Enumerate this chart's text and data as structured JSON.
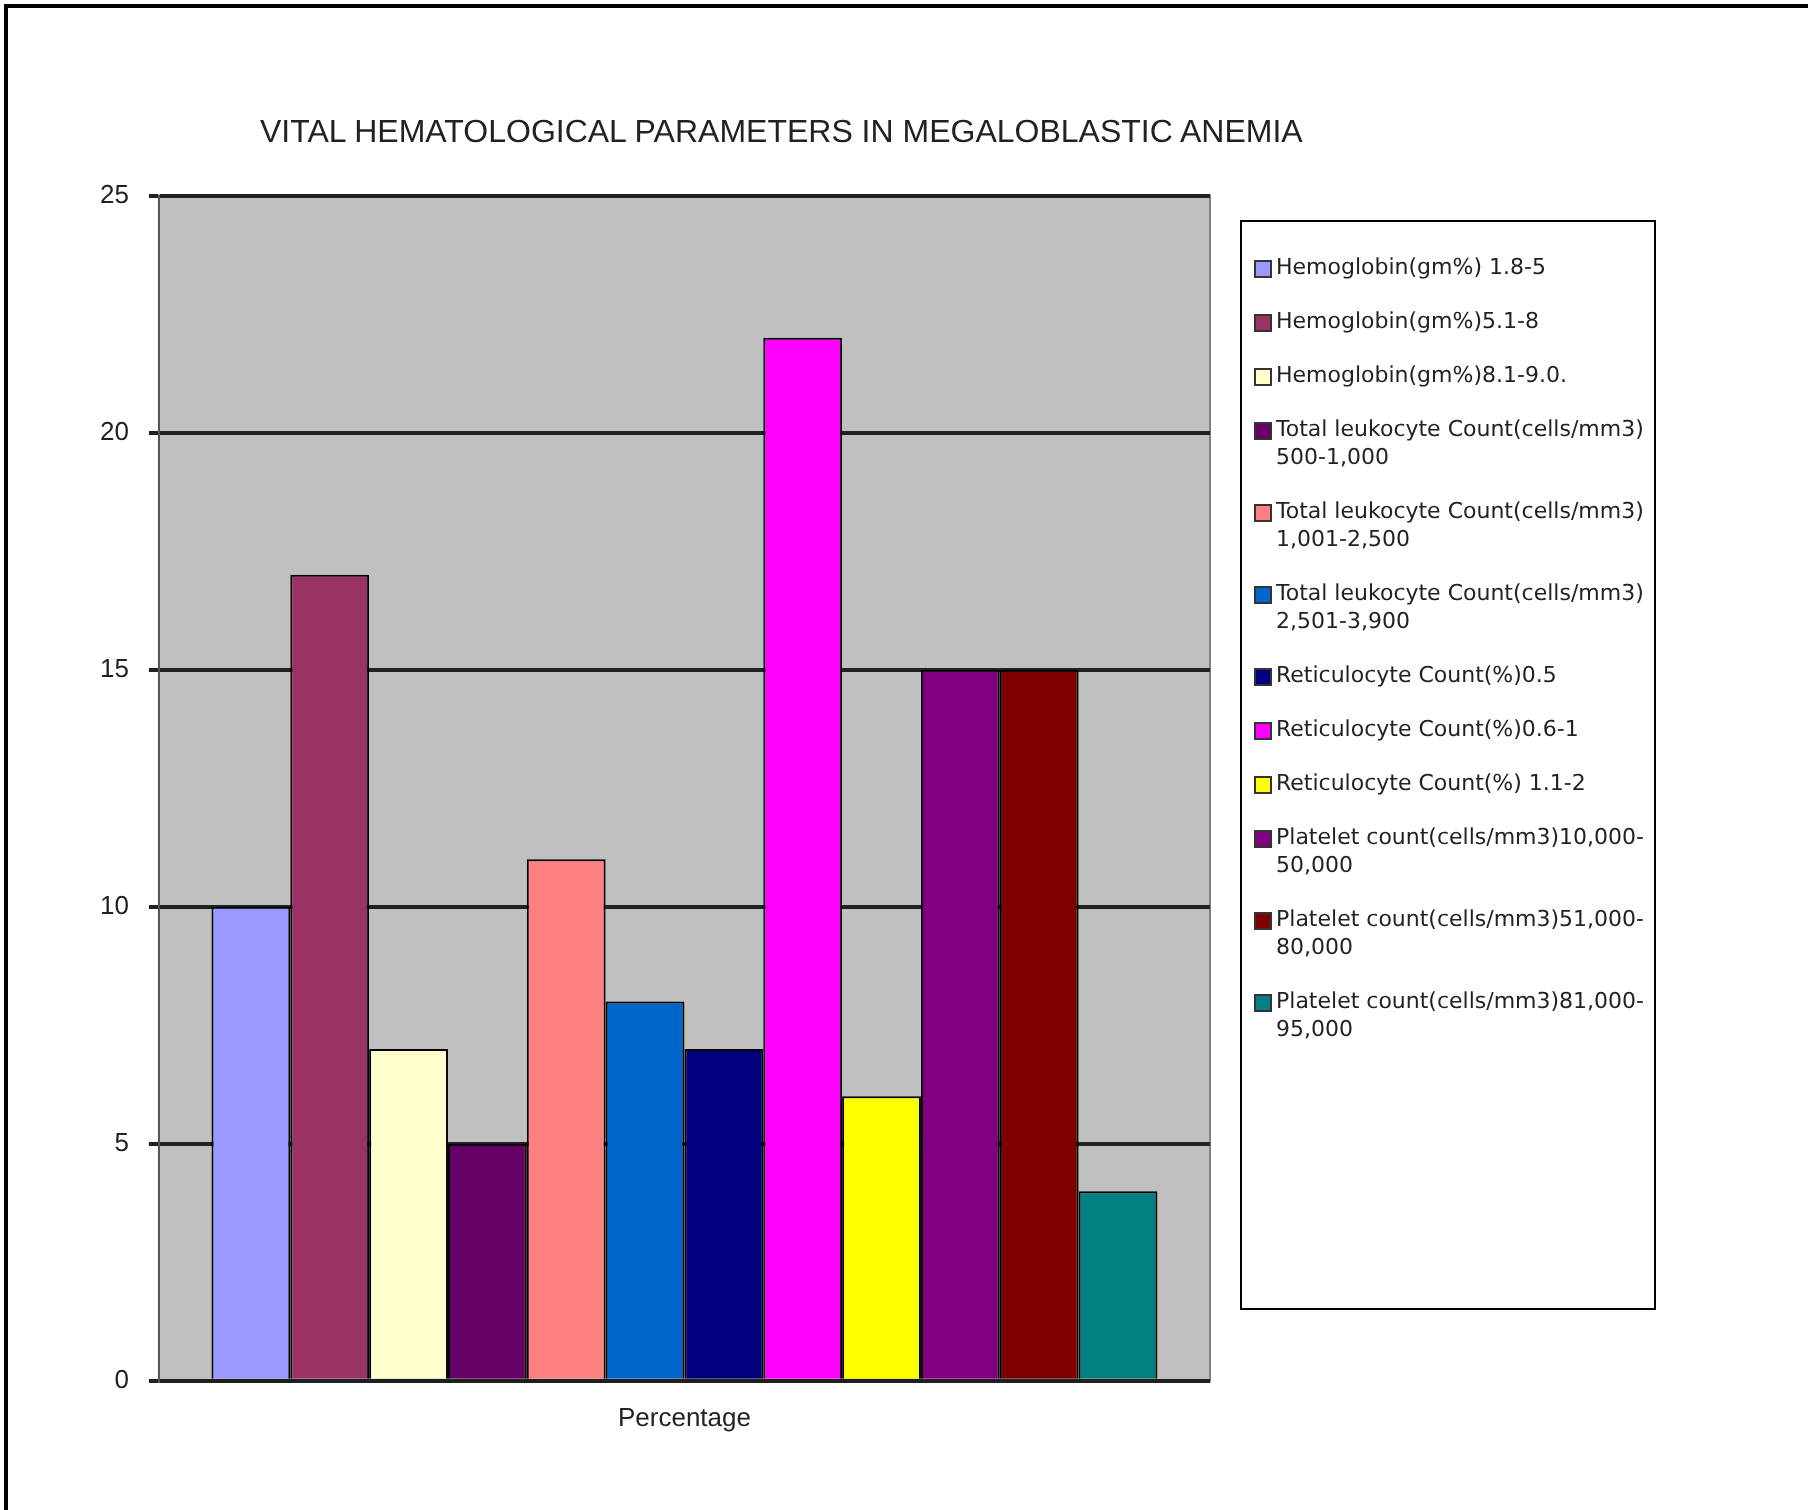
{
  "chart_data": {
    "type": "bar",
    "title": "VITAL HEMATOLOGICAL PARAMETERS IN MEGALOBLASTIC ANEMIA",
    "categories": [
      "Percentage"
    ],
    "series": [
      {
        "name": "Hemoglobin(gm%) 1.8-5",
        "color": "#9999ff",
        "values": [
          10
        ]
      },
      {
        "name": "Hemoglobin(gm%)5.1-8",
        "color": "#993366",
        "values": [
          17
        ]
      },
      {
        "name": "Hemoglobin(gm%)8.1-9.0.",
        "color": "#ffffcc",
        "values": [
          7
        ]
      },
      {
        "name": "Total leukocyte Count(cells/mm3) 500-1,000",
        "color": "#660066",
        "values": [
          5
        ]
      },
      {
        "name": "Total leukocyte Count(cells/mm3) 1,001-2,500",
        "color": "#ff8080",
        "values": [
          11
        ]
      },
      {
        "name": "Total leukocyte Count(cells/mm3) 2,501-3,900",
        "color": "#0066cc",
        "values": [
          8
        ]
      },
      {
        "name": "Reticulocyte Count(%)0.5",
        "color": "#000080",
        "values": [
          7
        ]
      },
      {
        "name": "Reticulocyte Count(%)0.6-1",
        "color": "#ff00ff",
        "values": [
          22
        ]
      },
      {
        "name": "Reticulocyte Count(%) 1.1-2",
        "color": "#ffff00",
        "values": [
          6
        ]
      },
      {
        "name": "Platelet count(cells/mm3)10,000-50,000",
        "color": "#800080",
        "values": [
          15
        ]
      },
      {
        "name": "Platelet count(cells/mm3)51,000-80,000",
        "color": "#800000",
        "values": [
          15
        ]
      },
      {
        "name": "Platelet count(cells/mm3)81,000-95,000",
        "color": "#008080",
        "values": [
          4
        ]
      }
    ],
    "ylim": [
      0,
      25
    ],
    "yticks": [
      0,
      5,
      10,
      15,
      20,
      25
    ],
    "grid": "y",
    "legend": "right"
  }
}
